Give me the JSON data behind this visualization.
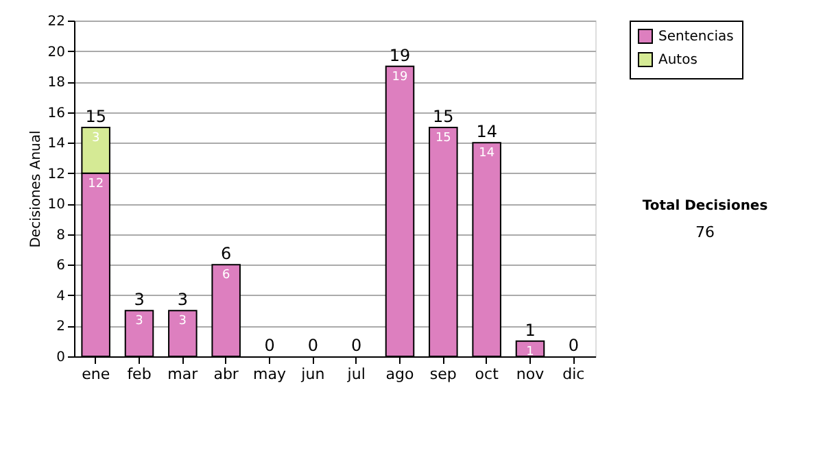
{
  "chart_data": {
    "type": "bar",
    "stacked": true,
    "categories": [
      "ene",
      "feb",
      "mar",
      "abr",
      "may",
      "jun",
      "jul",
      "ago",
      "sep",
      "oct",
      "nov",
      "dic"
    ],
    "series": [
      {
        "name": "Sentencias",
        "color": "#dd7fbf",
        "values": [
          12,
          3,
          3,
          6,
          0,
          0,
          0,
          19,
          15,
          14,
          1,
          0
        ],
        "value_labels": [
          "12",
          "3",
          "3",
          "6",
          null,
          null,
          null,
          "19",
          "15",
          "14",
          "1",
          null
        ]
      },
      {
        "name": "Autos",
        "color": "#d5ea95",
        "values": [
          3,
          0,
          0,
          0,
          0,
          0,
          0,
          0,
          0,
          0,
          0,
          0
        ],
        "value_labels": [
          "3",
          null,
          null,
          null,
          null,
          null,
          null,
          null,
          null,
          null,
          null,
          null
        ]
      }
    ],
    "totals": [
      "15",
      "3",
      "3",
      "6",
      "0",
      "0",
      "0",
      "19",
      "15",
      "14",
      "1",
      "0"
    ],
    "ylabel": "Decisiones Anual",
    "ylim": [
      0,
      22
    ],
    "yticks": [
      0,
      2,
      4,
      6,
      8,
      10,
      12,
      14,
      16,
      18,
      20,
      22
    ],
    "grid": "y",
    "legend": "right",
    "annotations": [
      "Total Decisiones",
      "76"
    ]
  }
}
